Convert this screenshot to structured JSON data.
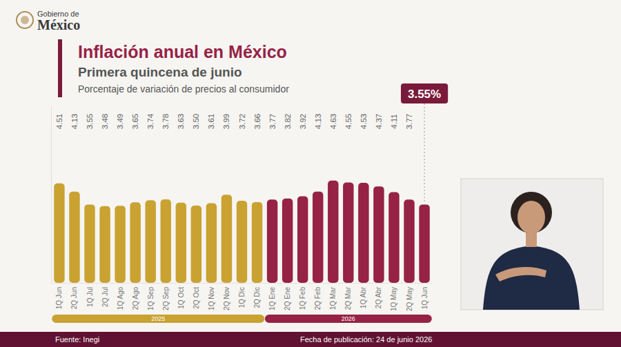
{
  "header": {
    "logo_line1": "Gobierno de",
    "logo_line2": "México"
  },
  "chart_data": {
    "type": "bar",
    "title": "Inflación anual en México",
    "subtitle": "Primera quincena de junio",
    "description": "Porcentaje de variación de precios al consumidor",
    "categories": [
      "1Q Jun",
      "2Q Jun",
      "1Q Jul",
      "2Q Jul",
      "1Q Ago",
      "2Q Ago",
      "1Q Sep",
      "2Q Sep",
      "1Q Oct",
      "2Q Oct",
      "1Q Nov",
      "2Q Nov",
      "1Q Dic",
      "2Q Dic",
      "1Q Ene",
      "2Q Ene",
      "1Q Feb",
      "2Q Feb",
      "1Q Mar",
      "2Q Mar",
      "1Q Abr",
      "2Q Abr",
      "1Q May",
      "2Q May",
      "1Q Jun"
    ],
    "values": [
      4.51,
      4.13,
      3.55,
      3.48,
      3.49,
      3.65,
      3.74,
      3.78,
      3.63,
      3.5,
      3.61,
      3.99,
      3.72,
      3.66,
      3.77,
      3.82,
      3.92,
      4.13,
      4.63,
      4.55,
      4.53,
      4.37,
      4.11,
      3.77,
      3.55
    ],
    "value_labels": [
      "4.51",
      "4.13",
      "3.55",
      "3.48",
      "3.49",
      "3.65",
      "3.74",
      "3.78",
      "3.63",
      "3.50",
      "3.61",
      "3.99",
      "3.72",
      "3.66",
      "3.77",
      "3.82",
      "3.92",
      "4.13",
      "4.63",
      "4.55",
      "4.53",
      "4.37",
      "4.11",
      "3.77",
      "3.55%"
    ],
    "colors": [
      "#c9a232",
      "#c9a232",
      "#c9a232",
      "#c9a232",
      "#c9a232",
      "#c9a232",
      "#c9a232",
      "#c9a232",
      "#c9a232",
      "#c9a232",
      "#c9a232",
      "#c9a232",
      "#c9a232",
      "#c9a232",
      "#962245",
      "#962245",
      "#962245",
      "#962245",
      "#962245",
      "#962245",
      "#962245",
      "#962245",
      "#962245",
      "#962245",
      "#962245"
    ],
    "groups": [
      {
        "name": "2025",
        "count": 14,
        "color": "#c9a232"
      },
      {
        "name": "2026",
        "count": 11,
        "color": "#962245"
      }
    ],
    "ylim": [
      0,
      8
    ],
    "data_labels": true,
    "tick_labels": "x",
    "grid": false
  },
  "footer": {
    "source": "Fuente: Inegi",
    "date": "Fecha de publicación: 24 de junio 2026"
  }
}
